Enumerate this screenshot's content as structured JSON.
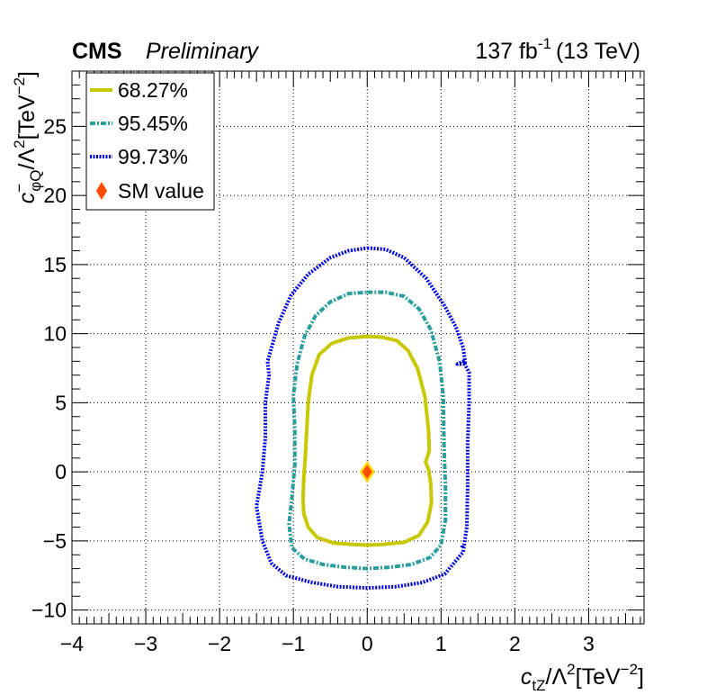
{
  "header": {
    "experiment": "CMS",
    "status": "Preliminary",
    "lumi": "137 fb",
    "lumi_exp": "-1",
    "energy": "(13 TeV)"
  },
  "chart_data": {
    "type": "line",
    "xlabel": {
      "base": "c",
      "sub": "tZ",
      "mid": "/Λ",
      "sup1": "2",
      "unit": "[TeV",
      "sup2": "−2",
      "close": "]"
    },
    "ylabel": {
      "base": "c",
      "sup0": "−",
      "sub": "φQ",
      "mid": "/Λ",
      "sup1": "2",
      "unit": "[TeV",
      "sup2": "−2",
      "close": "]"
    },
    "xlim": [
      -4,
      3.75
    ],
    "ylim": [
      -11,
      29
    ],
    "xticks": [
      -4,
      -3,
      -2,
      -1,
      0,
      1,
      2,
      3
    ],
    "xtick_labels": [
      "−4",
      "−3",
      "−2",
      "−1",
      "0",
      "1",
      "2",
      "3"
    ],
    "yticks": [
      -10,
      -5,
      0,
      5,
      10,
      15,
      20,
      25
    ],
    "ytick_labels": [
      "−10",
      "−5",
      "0",
      "5",
      "10",
      "15",
      "20",
      "25"
    ],
    "grid": true,
    "legend_position": "top-left",
    "sm_point": {
      "name": "SM value",
      "x": 0,
      "y": 0,
      "color": "#ff4a00",
      "edge": "#ffd500"
    },
    "series": [
      {
        "name": "68.27%",
        "color": "#c8c800",
        "style": "solid",
        "points": [
          [
            0,
            9.8
          ],
          [
            0.2,
            9.75
          ],
          [
            0.4,
            9.5
          ],
          [
            0.55,
            8.8
          ],
          [
            0.68,
            7.5
          ],
          [
            0.78,
            5.5
          ],
          [
            0.83,
            3.0
          ],
          [
            0.84,
            1.5
          ],
          [
            0.79,
            0.7
          ],
          [
            0.83,
            0.2
          ],
          [
            0.86,
            -0.8
          ],
          [
            0.87,
            -2.2
          ],
          [
            0.82,
            -3.6
          ],
          [
            0.7,
            -4.6
          ],
          [
            0.5,
            -5.1
          ],
          [
            0.2,
            -5.25
          ],
          [
            0,
            -5.3
          ],
          [
            -0.2,
            -5.25
          ],
          [
            -0.45,
            -5.15
          ],
          [
            -0.68,
            -4.75
          ],
          [
            -0.8,
            -4.0
          ],
          [
            -0.86,
            -3.0
          ],
          [
            -0.87,
            -2.0
          ],
          [
            -0.86,
            -0.5
          ],
          [
            -0.84,
            1.0
          ],
          [
            -0.82,
            3.0
          ],
          [
            -0.8,
            5.0
          ],
          [
            -0.75,
            7.0
          ],
          [
            -0.65,
            8.5
          ],
          [
            -0.48,
            9.3
          ],
          [
            -0.25,
            9.7
          ],
          [
            0,
            9.8
          ]
        ]
      },
      {
        "name": "95.45%",
        "color": "#2a9d9d",
        "style": "dashed",
        "points": [
          [
            0,
            13.0
          ],
          [
            0.25,
            13.0
          ],
          [
            0.5,
            12.7
          ],
          [
            0.7,
            11.8
          ],
          [
            0.86,
            10.3
          ],
          [
            0.98,
            8.0
          ],
          [
            1.03,
            5.5
          ],
          [
            1.04,
            2.0
          ],
          [
            1.06,
            -1.0
          ],
          [
            1.06,
            -3.5
          ],
          [
            1.0,
            -5.3
          ],
          [
            0.85,
            -6.2
          ],
          [
            0.6,
            -6.7
          ],
          [
            0.3,
            -6.9
          ],
          [
            0,
            -7.0
          ],
          [
            -0.3,
            -6.9
          ],
          [
            -0.6,
            -6.7
          ],
          [
            -0.85,
            -6.3
          ],
          [
            -1.02,
            -5.5
          ],
          [
            -1.06,
            -3.8
          ],
          [
            -1.02,
            -1.8
          ],
          [
            -0.98,
            0.5
          ],
          [
            -0.98,
            3.0
          ],
          [
            -1.0,
            5.5
          ],
          [
            -0.95,
            7.8
          ],
          [
            -0.85,
            9.8
          ],
          [
            -0.7,
            11.3
          ],
          [
            -0.5,
            12.3
          ],
          [
            -0.25,
            12.9
          ],
          [
            0,
            13.0
          ]
        ]
      },
      {
        "name": "99.73%",
        "color": "#0000e0",
        "style": "dotted",
        "points": [
          [
            0,
            16.2
          ],
          [
            0.25,
            16.1
          ],
          [
            0.5,
            15.5
          ],
          [
            0.8,
            14.0
          ],
          [
            1.05,
            12.0
          ],
          [
            1.2,
            10.5
          ],
          [
            1.3,
            9.0
          ],
          [
            1.33,
            7.8
          ],
          [
            1.22,
            7.8
          ],
          [
            1.3,
            8.0
          ],
          [
            1.38,
            7.2
          ],
          [
            1.38,
            5.0
          ],
          [
            1.36,
            2.0
          ],
          [
            1.36,
            -1.0
          ],
          [
            1.35,
            -4.0
          ],
          [
            1.3,
            -5.8
          ],
          [
            1.05,
            -7.4
          ],
          [
            0.75,
            -8.0
          ],
          [
            0.4,
            -8.3
          ],
          [
            0,
            -8.4
          ],
          [
            -0.4,
            -8.3
          ],
          [
            -0.75,
            -8.0
          ],
          [
            -1.1,
            -7.5
          ],
          [
            -1.3,
            -6.6
          ],
          [
            -1.42,
            -5.0
          ],
          [
            -1.5,
            -2.5
          ],
          [
            -1.42,
            0.0
          ],
          [
            -1.38,
            2.5
          ],
          [
            -1.38,
            5.0
          ],
          [
            -1.33,
            7.0
          ],
          [
            -1.35,
            8.0
          ],
          [
            -1.28,
            9.3
          ],
          [
            -1.2,
            10.8
          ],
          [
            -1.03,
            12.8
          ],
          [
            -0.8,
            14.3
          ],
          [
            -0.5,
            15.5
          ],
          [
            -0.25,
            16.0
          ],
          [
            0,
            16.2
          ]
        ]
      }
    ],
    "extra_points": [
      [
        1.28,
        -5.4
      ]
    ]
  }
}
